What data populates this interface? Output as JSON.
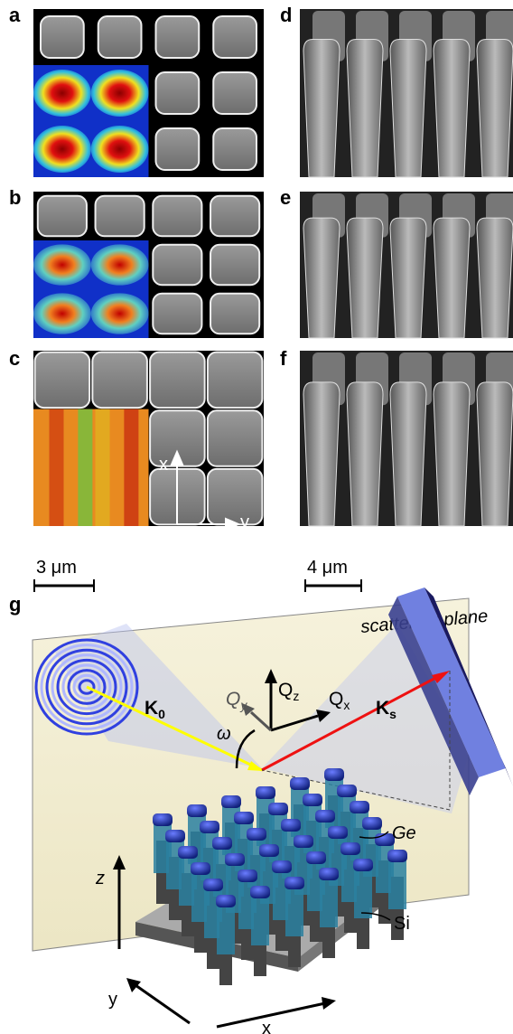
{
  "panels": {
    "a": {
      "label": "a"
    },
    "b": {
      "label": "b"
    },
    "c": {
      "label": "c",
      "axis_x": "x",
      "axis_y": "y"
    },
    "d": {
      "label": "d"
    },
    "e": {
      "label": "e"
    },
    "f": {
      "label": "f"
    },
    "scale_left": "3 μm",
    "scale_right": "4 μm",
    "g": {
      "label": "g",
      "plane": "scattering plane",
      "qz": {
        "main": "Q",
        "sub": "z"
      },
      "qy": {
        "main": "Q",
        "sub": "y"
      },
      "qx": {
        "main": "Q",
        "sub": "x"
      },
      "k0": {
        "main": "K",
        "sub": "0"
      },
      "ks": {
        "main": "K",
        "sub": "s"
      },
      "omega": "ω",
      "z": "z",
      "y": "y",
      "x": "x",
      "ge": "Ge",
      "si": "Si"
    }
  }
}
